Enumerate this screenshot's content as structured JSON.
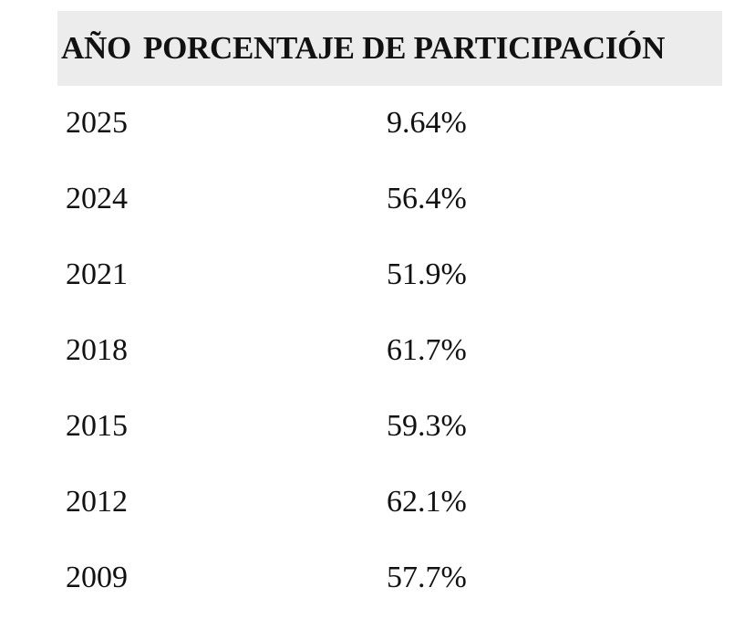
{
  "table": {
    "header": [
      "AÑO",
      "PORCENTAJE DE PARTICIPACIÓN"
    ],
    "rows": [
      [
        "2025",
        "9.64%"
      ],
      [
        "2024",
        "56.4%"
      ],
      [
        "2021",
        "51.9%"
      ],
      [
        "2018",
        "61.7%"
      ],
      [
        "2015",
        "59.3%"
      ],
      [
        "2012",
        "62.1%"
      ],
      [
        "2009",
        "57.7%"
      ]
    ]
  }
}
